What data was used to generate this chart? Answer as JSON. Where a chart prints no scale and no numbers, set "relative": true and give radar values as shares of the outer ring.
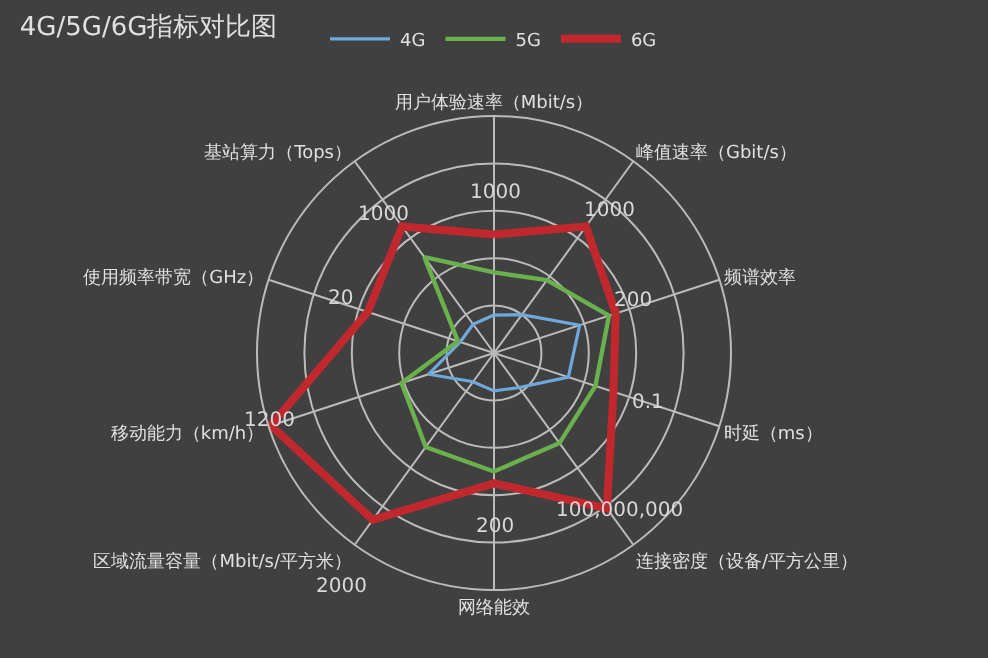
{
  "chart_data": {
    "type": "radar",
    "title": "4G/5G/6G指标对比图",
    "relative": true,
    "legend": "top",
    "grid": true,
    "marker": "none",
    "line_style": "solid",
    "categories": [
      "用户体验速率（Mbit/s）",
      "峰值速率（Gbit/s）",
      "频谱效率",
      "时延（ms）",
      "连接密度（设备/平方公里）",
      "网络能效",
      "区域流量容量（Mbit/s/平方米）",
      "移动能力（km/h）",
      "使用频率带宽（GHz）",
      "基站算力（Tops）"
    ],
    "series": [
      {
        "name": "4G",
        "color": "#6fa8dc",
        "values": [
          0.16,
          0.2,
          0.38,
          0.33,
          0.18,
          0.16,
          0.15,
          0.29,
          0.15,
          0.15
        ]
      },
      {
        "name": "5G",
        "color": "#6ab04c",
        "values": [
          0.34,
          0.38,
          0.51,
          0.45,
          0.47,
          0.5,
          0.49,
          0.41,
          0.16,
          0.5
        ]
      },
      {
        "name": "6G",
        "color": "#c0282d",
        "values": [
          0.5,
          0.66,
          0.54,
          0.53,
          0.81,
          0.55,
          0.87,
          0.99,
          0.56,
          0.66
        ]
      }
    ],
    "annotations": [
      {
        "text": "1000",
        "x": "用户体验速率（Mbit/s）"
      },
      {
        "text": "1000",
        "x": "峰值速率（Gbit/s）"
      },
      {
        "text": "200",
        "x": "频谱效率"
      },
      {
        "text": "0.1",
        "x": "时延（ms）"
      },
      {
        "text": "100,000,000",
        "x": "连接密度（设备/平方公里）"
      },
      {
        "text": "200",
        "x": "网络能效"
      },
      {
        "text": "2000",
        "x": "区域流量容量（Mbit/s/平方米）"
      },
      {
        "text": "1200",
        "x": "移动能力（km/h）"
      },
      {
        "text": "20",
        "x": "使用频率带宽（GHz）"
      },
      {
        "text": "1000",
        "x": "基站算力（Tops）"
      }
    ]
  }
}
